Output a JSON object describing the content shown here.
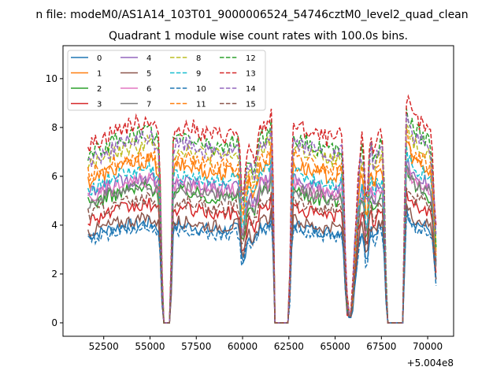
{
  "suptitle": "n file: modeM0/AS1A14_103T01_9000006524_54746cztM0_level2_quad_clean",
  "chart_data": {
    "type": "line",
    "title": "Quadrant 1 module wise count rates with 100.0s bins.",
    "xlabel": "",
    "ylabel": "",
    "x_offset_label": "+5.004e8",
    "xlim": [
      50300,
      71400
    ],
    "ylim": [
      -0.55,
      11.35
    ],
    "x_ticks": [
      52500,
      55000,
      57500,
      60000,
      62500,
      65000,
      67500,
      70000
    ],
    "x_tick_labels": [
      "52500",
      "55000",
      "57500",
      "60000",
      "62500",
      "65000",
      "67500",
      "70000"
    ],
    "y_ticks": [
      0,
      2,
      4,
      6,
      8,
      10
    ],
    "y_tick_labels": [
      "0",
      "2",
      "4",
      "6",
      "8",
      "10"
    ],
    "legend_position": "upper-left",
    "legend_columns": 4,
    "profile_x": [
      51650,
      51800,
      52200,
      52800,
      53500,
      54500,
      55000,
      55500,
      55700,
      55850,
      56100,
      56250,
      56500,
      57200,
      58000,
      59000,
      59800,
      60000,
      60300,
      60600,
      61000,
      61400,
      61600,
      61750,
      62500,
      62700,
      63000,
      64000,
      65000,
      65400,
      65600,
      65700,
      65900,
      66100,
      66300,
      66500,
      66700,
      66900,
      67100,
      67300,
      67600,
      67800,
      68000,
      68700,
      68800,
      68900,
      69200,
      69800,
      70200,
      70450
    ],
    "profile_shape": [
      0.8,
      0.8,
      0.82,
      0.85,
      0.88,
      0.9,
      0.92,
      0.85,
      0.0,
      0.0,
      0.0,
      0.85,
      0.88,
      0.88,
      0.85,
      0.84,
      0.86,
      0.5,
      0.8,
      0.72,
      0.88,
      0.9,
      1.0,
      0.0,
      0.0,
      0.9,
      0.88,
      0.84,
      0.82,
      0.85,
      0.15,
      0.05,
      0.05,
      0.45,
      0.75,
      0.85,
      0.5,
      0.88,
      0.75,
      0.85,
      0.85,
      0.0,
      0.0,
      0.0,
      1.05,
      1.0,
      0.92,
      0.88,
      0.84,
      0.4
    ],
    "series": [
      {
        "name": "0",
        "color": "#1f77b4",
        "dash": false,
        "level": 4.5
      },
      {
        "name": "1",
        "color": "#ff7f0e",
        "dash": false,
        "level": 7.3
      },
      {
        "name": "2",
        "color": "#2ca02c",
        "dash": false,
        "level": 6.1
      },
      {
        "name": "3",
        "color": "#d62728",
        "dash": false,
        "level": 5.3
      },
      {
        "name": "4",
        "color": "#9467bd",
        "dash": false,
        "level": 6.6
      },
      {
        "name": "5",
        "color": "#8c564b",
        "dash": false,
        "level": 4.7
      },
      {
        "name": "6",
        "color": "#e377c2",
        "dash": false,
        "level": 6.4
      },
      {
        "name": "7",
        "color": "#7f7f7f",
        "dash": false,
        "level": 6.2
      },
      {
        "name": "8",
        "color": "#bcbd22",
        "dash": true,
        "level": 8.1
      },
      {
        "name": "9",
        "color": "#17becf",
        "dash": true,
        "level": 6.9
      },
      {
        "name": "10",
        "color": "#1f77b4",
        "dash": true,
        "level": 4.3
      },
      {
        "name": "11",
        "color": "#ff7f0e",
        "dash": true,
        "level": 7.6
      },
      {
        "name": "12",
        "color": "#2ca02c",
        "dash": true,
        "level": 8.6
      },
      {
        "name": "13",
        "color": "#d62728",
        "dash": true,
        "level": 9.1
      },
      {
        "name": "14",
        "color": "#9467bd",
        "dash": true,
        "level": 8.3
      },
      {
        "name": "15",
        "color": "#8c564b",
        "dash": true,
        "level": 5.6
      }
    ]
  }
}
